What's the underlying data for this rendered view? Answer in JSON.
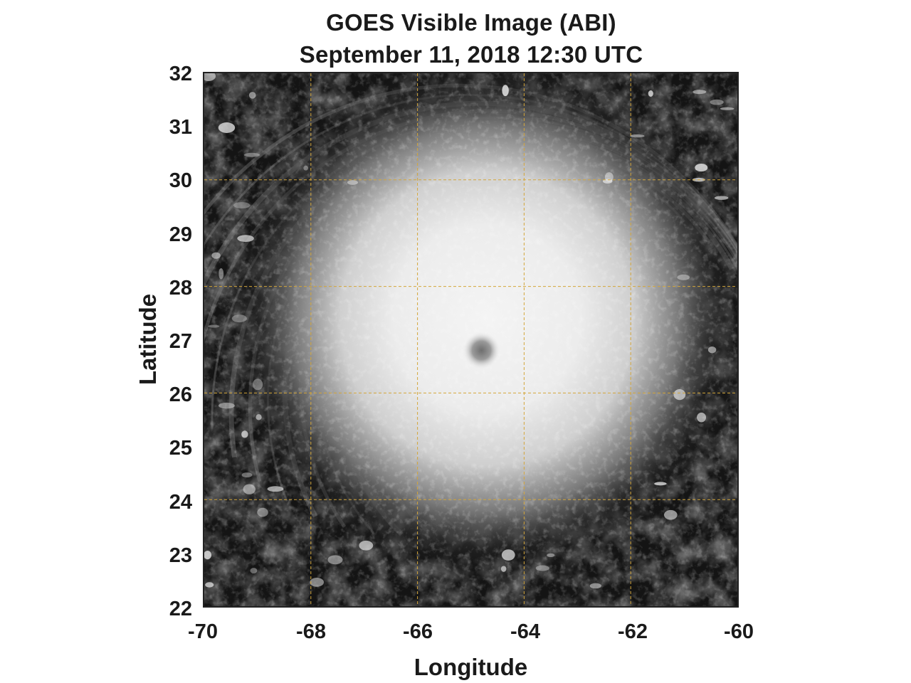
{
  "title": "GOES Visible Image (ABI)",
  "subtitle": "September 11, 2018 12:30 UTC",
  "xlabel": "Longitude",
  "ylabel": "Latitude",
  "x_ticks": [
    "-70",
    "-68",
    "-66",
    "-64",
    "-62",
    "-60"
  ],
  "y_ticks": [
    "32",
    "31",
    "30",
    "29",
    "28",
    "27",
    "26",
    "25",
    "24",
    "23",
    "22"
  ],
  "xlim": [
    -70,
    -60
  ],
  "ylim": [
    22,
    32
  ],
  "grid_lons": [
    -68,
    -66,
    -64,
    -62
  ],
  "grid_lats": [
    30,
    28,
    26,
    24
  ],
  "grid_color": "#d4a63a",
  "storm_eye": {
    "lon": -64.8,
    "lat": 26.8
  }
}
